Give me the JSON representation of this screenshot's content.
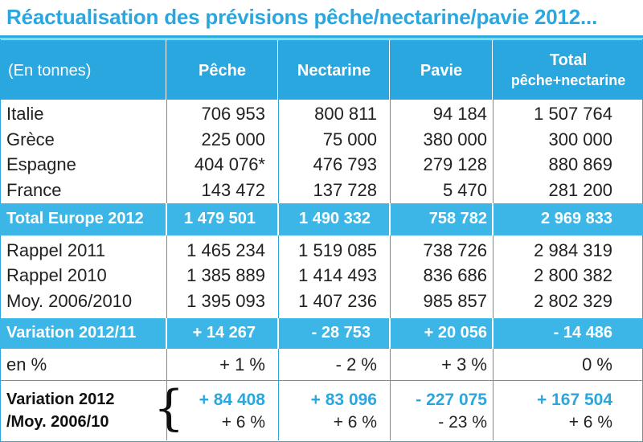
{
  "title": "Réactualisation des prévisions pêche/nectarine/pavie 2012...",
  "header": {
    "unit": "(En tonnes)",
    "c1": "Pêche",
    "c2": "Nectarine",
    "c3": "Pavie",
    "c4a": "Total",
    "c4b": "pêche+nectarine"
  },
  "rows": [
    {
      "label": "Italie",
      "c1": "706 953",
      "c2": "800 811",
      "c3": "94 184",
      "c4": "1 507 764"
    },
    {
      "label": "Grèce",
      "c1": "225 000",
      "c2": "75 000",
      "c3": "380 000",
      "c4": "300 000"
    },
    {
      "label": "Espagne",
      "c1": "404 076*",
      "c2": "476 793",
      "c3": "279 128",
      "c4": "880 869"
    },
    {
      "label": "France",
      "c1": "143 472",
      "c2": "137 728",
      "c3": "5 470",
      "c4": "281 200"
    }
  ],
  "total": {
    "label": "Total Europe 2012",
    "c1": "1 479 501",
    "c2": "1 490 332",
    "c3": "758 782",
    "c4": "2 969 833"
  },
  "history": [
    {
      "label": "Rappel 2011",
      "c1": "1 465 234",
      "c2": "1 519 085",
      "c3": "738 726",
      "c4": "2 984 319"
    },
    {
      "label": "Rappel 2010",
      "c1": "1 385 889",
      "c2": "1 414 493",
      "c3": "836 686",
      "c4": "2 800 382"
    },
    {
      "label": "Moy. 2006/2010",
      "c1": "1 395 093",
      "c2": "1 407 236",
      "c3": "985 857",
      "c4": "2 802 329"
    }
  ],
  "variation": {
    "label": "Variation 2012/11",
    "c1": "+ 14 267",
    "c2": "- 28 753",
    "c3": "+ 20 056",
    "c4": "- 14 486"
  },
  "pct": {
    "label": "en %",
    "c1": "+ 1 %",
    "c2": "- 2 %",
    "c3": "+ 3 %",
    "c4": "0 %"
  },
  "variation2": {
    "label1": "Variation 2012",
    "label2": "/Moy. 2006/10",
    "c1": "+ 84 408",
    "c2": "+ 83 096",
    "c3": "- 227 075",
    "c4": "+ 167 504",
    "p1": "+ 6 %",
    "p2": "+ 6 %",
    "p3": "- 23 %",
    "p4": "+ 6 %"
  }
}
